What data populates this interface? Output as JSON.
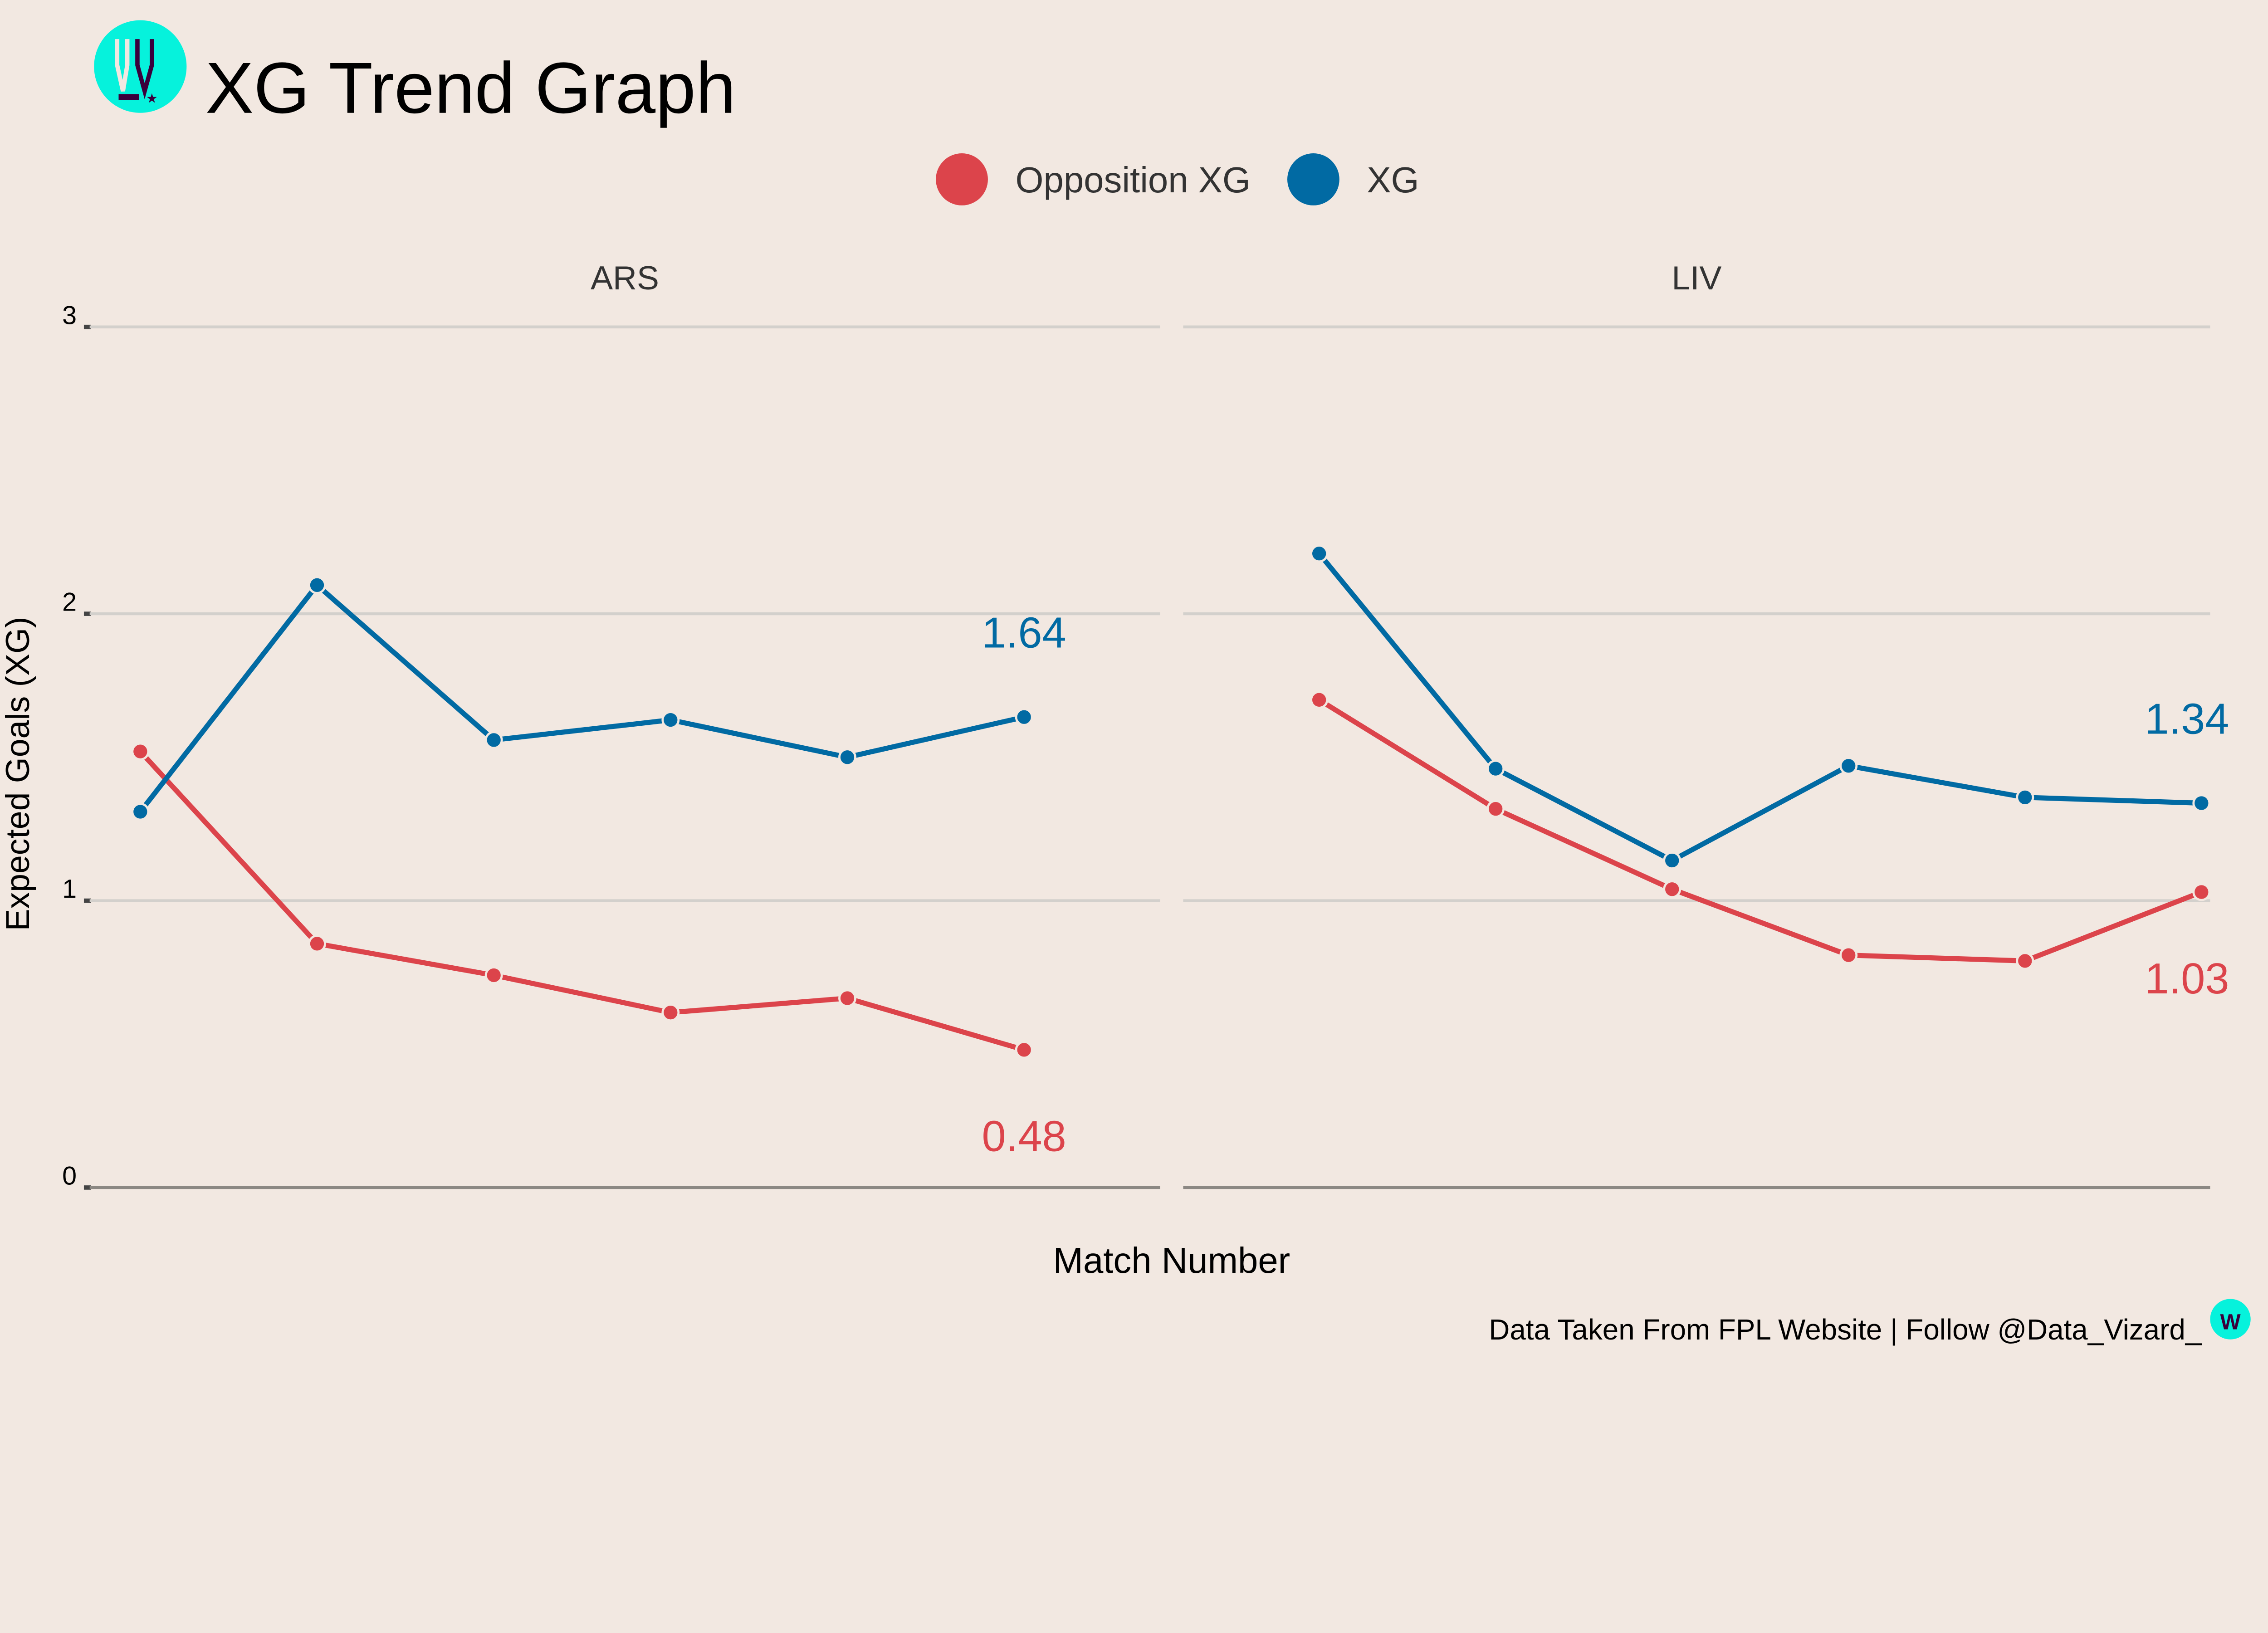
{
  "header": {
    "title": "XG Trend Graph",
    "logo_letter": "W"
  },
  "footer": {
    "caption": "Data Taken From FPL Website | Follow @Data_Vizard_"
  },
  "colors": {
    "background": "#f2e8e1",
    "opposition": "#dc444b",
    "xg": "#016aa3",
    "logo": "#06f2dc",
    "logo_dark": "#3a003c"
  },
  "chart_data": {
    "type": "line",
    "title": "XG Trend Graph",
    "xlabel": "Match Number",
    "ylabel": "Expected Goals (XG)",
    "ylim": [
      0,
      3
    ],
    "yticks": [
      "0",
      "1",
      "2",
      "3"
    ],
    "grid": true,
    "legend_position": "top",
    "legend": [
      "Opposition XG",
      "XG"
    ],
    "panels": [
      {
        "name": "ARS",
        "x": [
          1,
          2,
          3,
          4,
          5,
          6
        ],
        "series": [
          {
            "name": "Opposition XG",
            "values": [
              1.52,
              0.85,
              0.74,
              0.61,
              0.66,
              0.48
            ],
            "end_label": "0.48"
          },
          {
            "name": "XG",
            "values": [
              1.31,
              2.1,
              1.56,
              1.63,
              1.5,
              1.64
            ],
            "end_label": "1.64"
          }
        ]
      },
      {
        "name": "LIV",
        "x": [
          1,
          2,
          3,
          4,
          5,
          6
        ],
        "series": [
          {
            "name": "Opposition XG",
            "values": [
              1.7,
              1.32,
              1.04,
              0.81,
              0.79,
              1.03
            ],
            "end_label": "1.03"
          },
          {
            "name": "XG",
            "values": [
              2.21,
              1.46,
              1.14,
              1.47,
              1.36,
              1.34
            ],
            "end_label": "1.34"
          }
        ]
      }
    ]
  }
}
